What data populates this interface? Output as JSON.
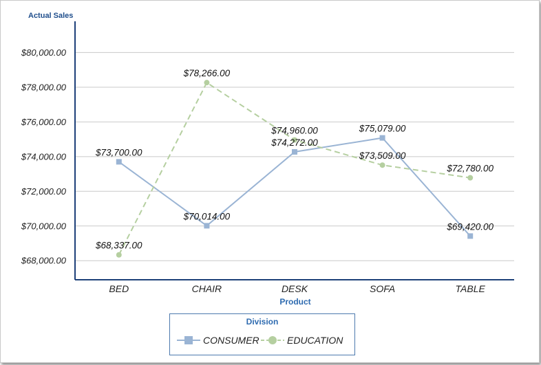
{
  "chart_data": {
    "type": "line",
    "categories": [
      "BED",
      "CHAIR",
      "DESK",
      "SOFA",
      "TABLE"
    ],
    "series": [
      {
        "name": "CONSUMER",
        "values": [
          73700,
          70014,
          74272,
          75079,
          69420
        ],
        "labels": [
          "$73,700.00",
          "$70,014.00",
          "$74,272.00",
          "$75,079.00",
          "$69,420.00"
        ],
        "color": "#9ab4d4",
        "marker": "square",
        "dash": "solid"
      },
      {
        "name": "EDUCATION",
        "values": [
          68337,
          78266,
          74960,
          73509,
          72780
        ],
        "labels": [
          "$68,337.00",
          "$78,266.00",
          "$74,960.00",
          "$73,509.00",
          "$72,780.00"
        ],
        "color": "#b5cfa0",
        "marker": "circle",
        "dash": "dashed"
      }
    ],
    "yticks": [
      68000,
      70000,
      72000,
      74000,
      76000,
      78000,
      80000
    ],
    "ytick_labels": [
      "$68,000.00",
      "$70,000.00",
      "$72,000.00",
      "$74,000.00",
      "$76,000.00",
      "$78,000.00",
      "$80,000.00"
    ],
    "ylabel": "Actual Sales",
    "xlabel": "Product",
    "ylim": [
      66900,
      81800
    ],
    "grid": true,
    "legend": {
      "title": "Division",
      "placement": "bottom-center"
    }
  }
}
